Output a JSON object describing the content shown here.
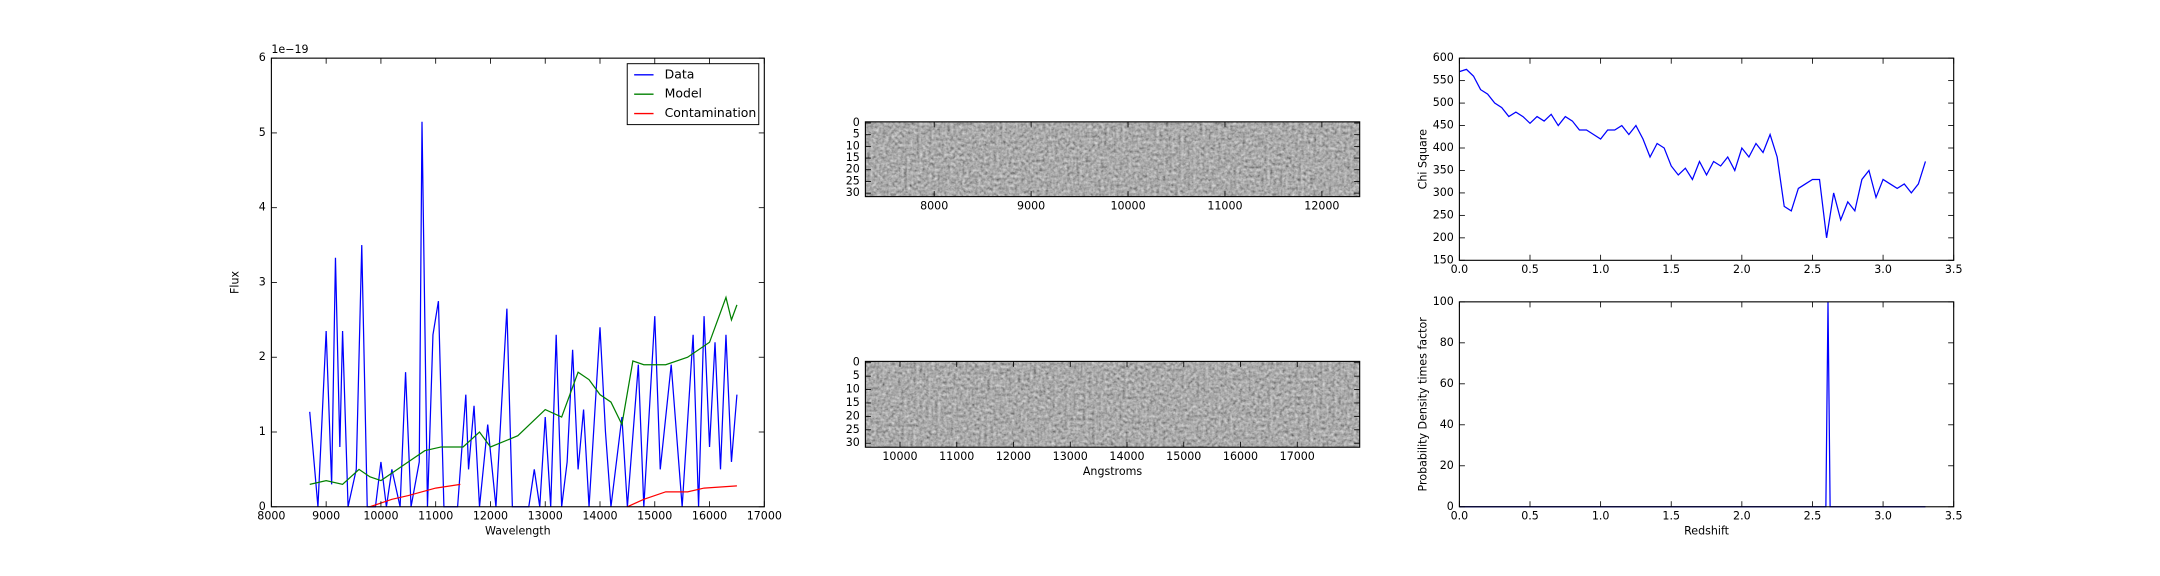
{
  "chart_data": [
    {
      "type": "line",
      "xlabel": "Wavelength",
      "ylabel": "Flux",
      "offset_text": "1e−19",
      "xlim": [
        8000,
        17000
      ],
      "xticks": [
        8000,
        9000,
        10000,
        11000,
        12000,
        13000,
        14000,
        15000,
        16000,
        17000
      ],
      "ylim": [
        0,
        6
      ],
      "yticks": [
        0,
        1,
        2,
        3,
        4,
        5,
        6
      ],
      "legend": "upper right",
      "series": [
        {
          "name": "Data",
          "color": "#0000ff",
          "x": [
            8700,
            8850,
            9000,
            9100,
            9170,
            9250,
            9300,
            9400,
            9550,
            9650,
            9750,
            9900,
            10000,
            10100,
            10200,
            10350,
            10450,
            10550,
            10700,
            10750,
            10850,
            10950,
            11050,
            11150,
            11400,
            11550,
            11600,
            11700,
            11800,
            11950,
            12100,
            12300,
            12400,
            12700,
            12800,
            12900,
            13000,
            13100,
            13200,
            13300,
            13400,
            13500,
            13600,
            13700,
            13800,
            14000,
            14100,
            14200,
            14400,
            14500,
            14700,
            14800,
            15000,
            15100,
            15300,
            15500,
            15700,
            15800,
            15900,
            16000,
            16100,
            16200,
            16300,
            16400,
            16500
          ],
          "values": [
            1.27,
            0,
            2.35,
            0.3,
            3.33,
            0.8,
            2.35,
            0,
            0.5,
            3.5,
            0,
            0,
            0.6,
            0,
            0.5,
            0,
            1.8,
            0,
            0.6,
            5.15,
            0,
            2.3,
            2.75,
            0,
            0,
            1.5,
            0.5,
            1.35,
            0,
            1.1,
            0,
            2.65,
            0,
            0,
            0.5,
            0,
            1.2,
            0,
            2.3,
            0,
            0.6,
            2.1,
            0.5,
            1.3,
            0,
            2.4,
            1.0,
            0,
            1.2,
            0,
            1.9,
            0,
            2.55,
            0.5,
            1.9,
            0,
            2.3,
            0,
            2.55,
            0.8,
            2.2,
            0.5,
            2.3,
            0.6,
            1.5
          ]
        },
        {
          "name": "Model",
          "color": "#008000",
          "x": [
            8700,
            9000,
            9300,
            9600,
            9800,
            10000,
            10300,
            10500,
            10800,
            11100,
            11500,
            11800,
            12000,
            12500,
            13000,
            13300,
            13600,
            13800,
            14000,
            14200,
            14400,
            14600,
            14800,
            15200,
            15600,
            16000,
            16300,
            16400,
            16500
          ],
          "values": [
            0.3,
            0.35,
            0.3,
            0.5,
            0.4,
            0.35,
            0.5,
            0.6,
            0.75,
            0.8,
            0.8,
            1.0,
            0.8,
            0.95,
            1.3,
            1.2,
            1.8,
            1.7,
            1.5,
            1.4,
            1.1,
            1.95,
            1.9,
            1.9,
            2.0,
            2.2,
            2.8,
            2.5,
            2.7
          ]
        },
        {
          "name": "Contamination",
          "color": "#ff0000",
          "x": [
            9800,
            10000,
            10200,
            10500,
            11000,
            11450,
            11500,
            14500,
            14800,
            15200,
            15600,
            15900,
            16500
          ],
          "values": [
            0,
            0.05,
            0.1,
            0.15,
            0.25,
            0.3,
            null,
            0,
            0.1,
            0.2,
            0.2,
            0.25,
            0.28
          ]
        }
      ]
    },
    {
      "type": "image",
      "xlim": [
        7290,
        12390
      ],
      "xticks": [
        8000,
        9000,
        10000,
        11000,
        12000
      ],
      "ylim": [
        31.5,
        -0.5
      ],
      "yticks": [
        0,
        5,
        10,
        15,
        20,
        25,
        30
      ]
    },
    {
      "type": "image",
      "xlabel": "Angstroms",
      "xlim": [
        9390,
        18100
      ],
      "xticks": [
        10000,
        11000,
        12000,
        13000,
        14000,
        15000,
        16000,
        17000
      ],
      "ylim": [
        31.5,
        -0.5
      ],
      "yticks": [
        0,
        5,
        10,
        15,
        20,
        25,
        30
      ]
    },
    {
      "type": "line",
      "ylabel": "Chi Square",
      "xlim": [
        0,
        3.5
      ],
      "xticks": [
        {
          "value": 0,
          "label": "0.0"
        },
        0.5,
        {
          "value": 1,
          "label": "1.0"
        },
        1.5,
        {
          "value": 2,
          "label": "2.0"
        },
        2.5,
        {
          "value": 3,
          "label": "3.0"
        },
        3.5
      ],
      "ylim": [
        150,
        600
      ],
      "yticks": [
        150,
        200,
        250,
        300,
        350,
        400,
        450,
        500,
        550,
        600
      ],
      "series": [
        {
          "color": "#0000ff",
          "x": [
            0,
            0.05,
            0.1,
            0.15,
            0.2,
            0.25,
            0.3,
            0.35,
            0.4,
            0.45,
            0.5,
            0.55,
            0.6,
            0.65,
            0.7,
            0.75,
            0.8,
            0.85,
            0.9,
            0.95,
            1.0,
            1.05,
            1.1,
            1.15,
            1.2,
            1.25,
            1.3,
            1.35,
            1.4,
            1.45,
            1.5,
            1.55,
            1.6,
            1.65,
            1.7,
            1.75,
            1.8,
            1.85,
            1.9,
            1.95,
            2.0,
            2.05,
            2.1,
            2.15,
            2.2,
            2.25,
            2.3,
            2.35,
            2.4,
            2.45,
            2.5,
            2.55,
            2.6,
            2.65,
            2.7,
            2.75,
            2.8,
            2.85,
            2.9,
            2.95,
            3.0,
            3.05,
            3.1,
            3.15,
            3.2,
            3.25,
            3.3
          ],
          "values": [
            570,
            575,
            560,
            530,
            520,
            500,
            490,
            470,
            480,
            470,
            455,
            470,
            460,
            475,
            450,
            470,
            460,
            440,
            440,
            430,
            420,
            440,
            440,
            450,
            430,
            450,
            420,
            380,
            410,
            400,
            360,
            340,
            355,
            330,
            370,
            340,
            370,
            360,
            380,
            350,
            400,
            380,
            410,
            390,
            430,
            380,
            270,
            260,
            310,
            320,
            330,
            330,
            200,
            300,
            240,
            280,
            260,
            330,
            350,
            290,
            330,
            320,
            310,
            320,
            300,
            320,
            370
          ]
        }
      ]
    },
    {
      "type": "line",
      "xlabel": "Redshift",
      "ylabel": "Probability Density times factor",
      "xlim": [
        0,
        3.5
      ],
      "xticks": [
        {
          "value": 0,
          "label": "0.0"
        },
        0.5,
        {
          "value": 1,
          "label": "1.0"
        },
        1.5,
        {
          "value": 2,
          "label": "2.0"
        },
        2.5,
        {
          "value": 3,
          "label": "3.0"
        },
        3.5
      ],
      "ylim": [
        0,
        100
      ],
      "yticks": [
        0,
        20,
        40,
        60,
        80,
        100
      ],
      "series": [
        {
          "color": "#0000ff",
          "x": [
            0,
            2.595,
            2.61,
            2.625,
            3.3
          ],
          "values": [
            0,
            0,
            100,
            0,
            0
          ]
        }
      ]
    }
  ]
}
